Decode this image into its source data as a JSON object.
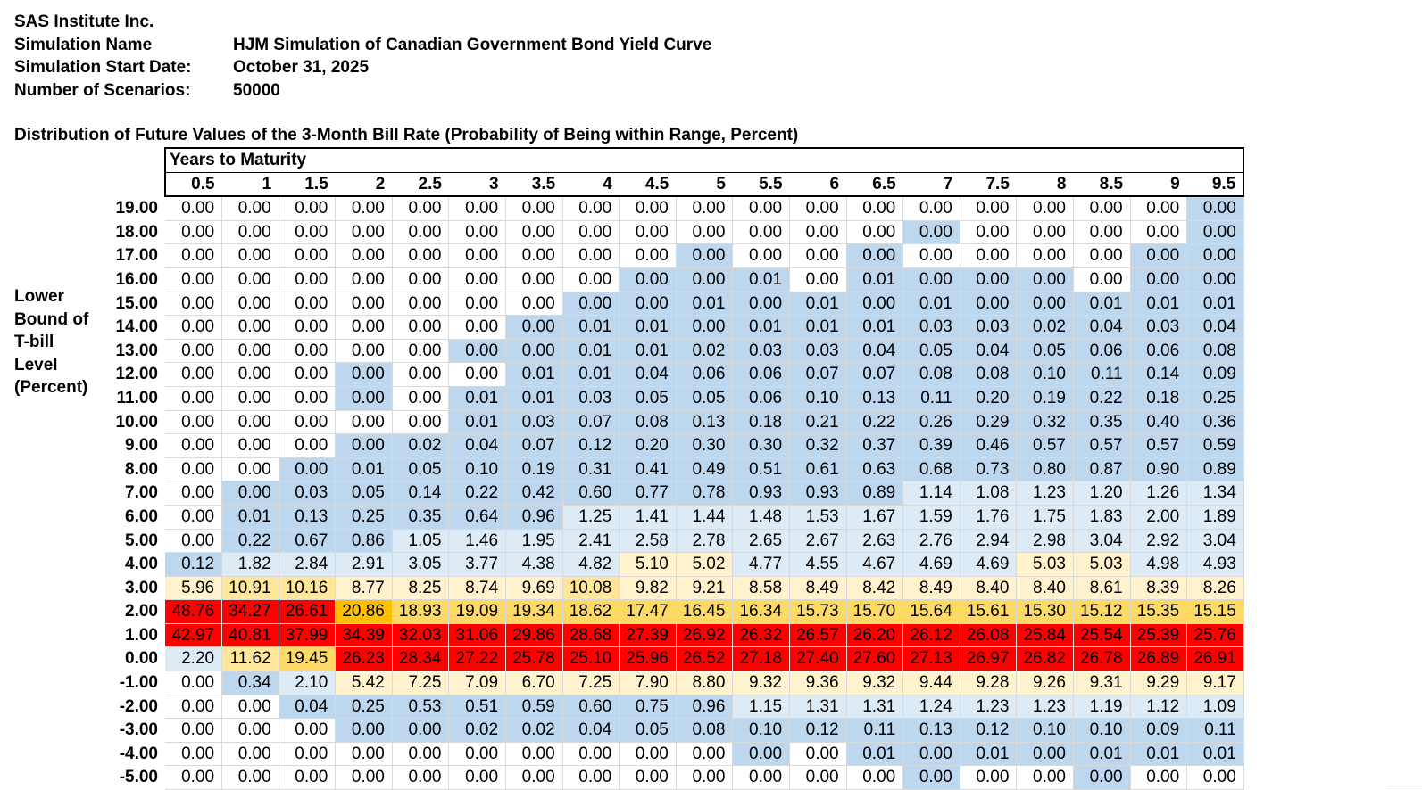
{
  "header": {
    "company": "SAS Institute Inc.",
    "fields": [
      {
        "label": "Simulation Name",
        "value": "HJM Simulation of Canadian Government Bond Yield Curve"
      },
      {
        "label": "Simulation Start Date:",
        "value": "October 31, 2025"
      },
      {
        "label": "Number of Scenarios:",
        "value": "50000"
      }
    ]
  },
  "section_title": "Distribution of Future Values of the 3-Month Bill Rate (Probability of Being within Range, Percent)",
  "row_axis_label": [
    "Lower",
    "Bound of",
    "T-bill",
    "Level",
    "(Percent)"
  ],
  "column_group_label": "Years to Maturity",
  "color_legend": {
    "W": "#ffffff",
    "B": "#bdd7ee",
    "L": "#ddebf7",
    "C": "#fff2cc",
    "Y": "#ffe699",
    "G": "#ffd966",
    "O": "#ffc000",
    "R": "#ff0000"
  },
  "columns": [
    "0.5",
    "1",
    "1.5",
    "2",
    "2.5",
    "3",
    "3.5",
    "4",
    "4.5",
    "5",
    "5.5",
    "6",
    "6.5",
    "7",
    "7.5",
    "8",
    "8.5",
    "9",
    "9.5"
  ],
  "rows": [
    {
      "label": "19.00",
      "values": [
        "0.00",
        "0.00",
        "0.00",
        "0.00",
        "0.00",
        "0.00",
        "0.00",
        "0.00",
        "0.00",
        "0.00",
        "0.00",
        "0.00",
        "0.00",
        "0.00",
        "0.00",
        "0.00",
        "0.00",
        "0.00",
        "0.00"
      ],
      "colors": "WWWWWWWWWWWWWWWWWWB"
    },
    {
      "label": "18.00",
      "values": [
        "0.00",
        "0.00",
        "0.00",
        "0.00",
        "0.00",
        "0.00",
        "0.00",
        "0.00",
        "0.00",
        "0.00",
        "0.00",
        "0.00",
        "0.00",
        "0.00",
        "0.00",
        "0.00",
        "0.00",
        "0.00",
        "0.00"
      ],
      "colors": "WWWWWWWWWWWWWBWWWWB"
    },
    {
      "label": "17.00",
      "values": [
        "0.00",
        "0.00",
        "0.00",
        "0.00",
        "0.00",
        "0.00",
        "0.00",
        "0.00",
        "0.00",
        "0.00",
        "0.00",
        "0.00",
        "0.00",
        "0.00",
        "0.00",
        "0.00",
        "0.00",
        "0.00",
        "0.00"
      ],
      "colors": "WWWWWWWWWBWWBWWWWBB"
    },
    {
      "label": "16.00",
      "values": [
        "0.00",
        "0.00",
        "0.00",
        "0.00",
        "0.00",
        "0.00",
        "0.00",
        "0.00",
        "0.00",
        "0.00",
        "0.01",
        "0.00",
        "0.01",
        "0.00",
        "0.00",
        "0.00",
        "0.00",
        "0.00",
        "0.00"
      ],
      "colors": "WWWWWWWWBBBWBBBBWBB"
    },
    {
      "label": "15.00",
      "values": [
        "0.00",
        "0.00",
        "0.00",
        "0.00",
        "0.00",
        "0.00",
        "0.00",
        "0.00",
        "0.00",
        "0.01",
        "0.00",
        "0.01",
        "0.00",
        "0.01",
        "0.00",
        "0.00",
        "0.01",
        "0.01",
        "0.01"
      ],
      "colors": "WWWWWWWBBBBBBBBBBBB"
    },
    {
      "label": "14.00",
      "values": [
        "0.00",
        "0.00",
        "0.00",
        "0.00",
        "0.00",
        "0.00",
        "0.00",
        "0.01",
        "0.01",
        "0.00",
        "0.01",
        "0.01",
        "0.01",
        "0.03",
        "0.03",
        "0.02",
        "0.04",
        "0.03",
        "0.04"
      ],
      "colors": "WWWWWWBBBBBBBBBBBBB"
    },
    {
      "label": "13.00",
      "values": [
        "0.00",
        "0.00",
        "0.00",
        "0.00",
        "0.00",
        "0.00",
        "0.00",
        "0.01",
        "0.01",
        "0.02",
        "0.03",
        "0.03",
        "0.04",
        "0.05",
        "0.04",
        "0.05",
        "0.06",
        "0.06",
        "0.08"
      ],
      "colors": "WWWWWBBBBBBBBBBBBBB"
    },
    {
      "label": "12.00",
      "values": [
        "0.00",
        "0.00",
        "0.00",
        "0.00",
        "0.00",
        "0.00",
        "0.01",
        "0.01",
        "0.04",
        "0.06",
        "0.06",
        "0.07",
        "0.07",
        "0.08",
        "0.08",
        "0.10",
        "0.11",
        "0.14",
        "0.09"
      ],
      "colors": "WWWBWWBBBBBBBBBBBBB"
    },
    {
      "label": "11.00",
      "values": [
        "0.00",
        "0.00",
        "0.00",
        "0.00",
        "0.00",
        "0.01",
        "0.01",
        "0.03",
        "0.05",
        "0.05",
        "0.06",
        "0.10",
        "0.13",
        "0.11",
        "0.20",
        "0.19",
        "0.22",
        "0.18",
        "0.25"
      ],
      "colors": "WWWBWBBBBBBBBBBBBBB"
    },
    {
      "label": "10.00",
      "values": [
        "0.00",
        "0.00",
        "0.00",
        "0.00",
        "0.00",
        "0.01",
        "0.03",
        "0.07",
        "0.08",
        "0.13",
        "0.18",
        "0.21",
        "0.22",
        "0.26",
        "0.29",
        "0.32",
        "0.35",
        "0.40",
        "0.36"
      ],
      "colors": "WWWWWBBBBBBBBBBBBBB"
    },
    {
      "label": "9.00",
      "values": [
        "0.00",
        "0.00",
        "0.00",
        "0.00",
        "0.02",
        "0.04",
        "0.07",
        "0.12",
        "0.20",
        "0.30",
        "0.30",
        "0.32",
        "0.37",
        "0.39",
        "0.46",
        "0.57",
        "0.57",
        "0.57",
        "0.59"
      ],
      "colors": "WWWBBBBBBBBBBBBBBBB"
    },
    {
      "label": "8.00",
      "values": [
        "0.00",
        "0.00",
        "0.00",
        "0.01",
        "0.05",
        "0.10",
        "0.19",
        "0.31",
        "0.41",
        "0.49",
        "0.51",
        "0.61",
        "0.63",
        "0.68",
        "0.73",
        "0.80",
        "0.87",
        "0.90",
        "0.89"
      ],
      "colors": "WWBBBBBBBBBBBBBBBBB"
    },
    {
      "label": "7.00",
      "values": [
        "0.00",
        "0.00",
        "0.03",
        "0.05",
        "0.14",
        "0.22",
        "0.42",
        "0.60",
        "0.77",
        "0.78",
        "0.93",
        "0.93",
        "0.89",
        "1.14",
        "1.08",
        "1.23",
        "1.20",
        "1.26",
        "1.34"
      ],
      "colors": "WBBBBBBBBBBBBLLLLLL"
    },
    {
      "label": "6.00",
      "values": [
        "0.00",
        "0.01",
        "0.13",
        "0.25",
        "0.35",
        "0.64",
        "0.96",
        "1.25",
        "1.41",
        "1.44",
        "1.48",
        "1.53",
        "1.67",
        "1.59",
        "1.76",
        "1.75",
        "1.83",
        "2.00",
        "1.89"
      ],
      "colors": "WBBBBBBLLLLLLLLLLLL"
    },
    {
      "label": "5.00",
      "values": [
        "0.00",
        "0.22",
        "0.67",
        "0.86",
        "1.05",
        "1.46",
        "1.95",
        "2.41",
        "2.58",
        "2.78",
        "2.65",
        "2.67",
        "2.63",
        "2.76",
        "2.94",
        "2.98",
        "3.04",
        "2.92",
        "3.04"
      ],
      "colors": "WBBBLLLLLLLLLLLLLLL"
    },
    {
      "label": "4.00",
      "values": [
        "0.12",
        "1.82",
        "2.84",
        "2.91",
        "3.05",
        "3.77",
        "4.38",
        "4.82",
        "5.10",
        "5.02",
        "4.77",
        "4.55",
        "4.67",
        "4.69",
        "4.69",
        "5.03",
        "5.03",
        "4.98",
        "4.93"
      ],
      "colors": "BLLLLLLLCCLLLLLCCLL"
    },
    {
      "label": "3.00",
      "values": [
        "5.96",
        "10.91",
        "10.16",
        "8.77",
        "8.25",
        "8.74",
        "9.69",
        "10.08",
        "9.82",
        "9.21",
        "8.58",
        "8.49",
        "8.42",
        "8.49",
        "8.40",
        "8.40",
        "8.61",
        "8.39",
        "8.26"
      ],
      "colors": "CYYCCCCYCCCCCCCCCCC"
    },
    {
      "label": "2.00",
      "values": [
        "48.76",
        "34.27",
        "26.61",
        "20.86",
        "18.93",
        "19.09",
        "19.34",
        "18.62",
        "17.47",
        "16.45",
        "16.34",
        "15.73",
        "15.70",
        "15.64",
        "15.61",
        "15.30",
        "15.12",
        "15.35",
        "15.15"
      ],
      "colors": "RRROGGGGGGGGGGGGGGG"
    },
    {
      "label": "1.00",
      "values": [
        "42.97",
        "40.81",
        "37.99",
        "34.39",
        "32.03",
        "31.06",
        "29.86",
        "28.68",
        "27.39",
        "26.92",
        "26.32",
        "26.57",
        "26.20",
        "26.12",
        "26.08",
        "25.84",
        "25.54",
        "25.39",
        "25.76"
      ],
      "colors": "RRRRRRRRRRRRRRRRRRR"
    },
    {
      "label": "0.00",
      "values": [
        "2.20",
        "11.62",
        "19.45",
        "26.23",
        "28.34",
        "27.22",
        "25.78",
        "25.10",
        "25.96",
        "26.52",
        "27.18",
        "27.40",
        "27.60",
        "27.13",
        "26.97",
        "26.82",
        "26.78",
        "26.89",
        "26.91"
      ],
      "colors": "LYGRRRRRRRRRRRRRRRR"
    },
    {
      "label": "-1.00",
      "values": [
        "0.00",
        "0.34",
        "2.10",
        "5.42",
        "7.25",
        "7.09",
        "6.70",
        "7.25",
        "7.90",
        "8.80",
        "9.32",
        "9.36",
        "9.32",
        "9.44",
        "9.28",
        "9.26",
        "9.31",
        "9.29",
        "9.17"
      ],
      "colors": "WBLCCCCCCCCCCCCCCCC"
    },
    {
      "label": "-2.00",
      "values": [
        "0.00",
        "0.00",
        "0.04",
        "0.25",
        "0.53",
        "0.51",
        "0.59",
        "0.60",
        "0.75",
        "0.96",
        "1.15",
        "1.31",
        "1.31",
        "1.24",
        "1.23",
        "1.23",
        "1.19",
        "1.12",
        "1.09"
      ],
      "colors": "WWBBBBBBBBLLLLLLLLL"
    },
    {
      "label": "-3.00",
      "values": [
        "0.00",
        "0.00",
        "0.00",
        "0.00",
        "0.00",
        "0.02",
        "0.02",
        "0.04",
        "0.05",
        "0.08",
        "0.10",
        "0.12",
        "0.11",
        "0.13",
        "0.12",
        "0.10",
        "0.10",
        "0.09",
        "0.11"
      ],
      "colors": "WWWBBBBBBBBBBBBBBBB"
    },
    {
      "label": "-4.00",
      "values": [
        "0.00",
        "0.00",
        "0.00",
        "0.00",
        "0.00",
        "0.00",
        "0.00",
        "0.00",
        "0.00",
        "0.00",
        "0.00",
        "0.00",
        "0.01",
        "0.00",
        "0.01",
        "0.00",
        "0.01",
        "0.01",
        "0.01"
      ],
      "colors": "WWWWWWWWWWBWBBBBBBB"
    },
    {
      "label": "-5.00",
      "values": [
        "0.00",
        "0.00",
        "0.00",
        "0.00",
        "0.00",
        "0.00",
        "0.00",
        "0.00",
        "0.00",
        "0.00",
        "0.00",
        "0.00",
        "0.00",
        "0.00",
        "0.00",
        "0.00",
        "0.00",
        "0.00",
        "0.00"
      ],
      "colors": "WWWWWWWWWWWWWBWWBWW"
    }
  ]
}
